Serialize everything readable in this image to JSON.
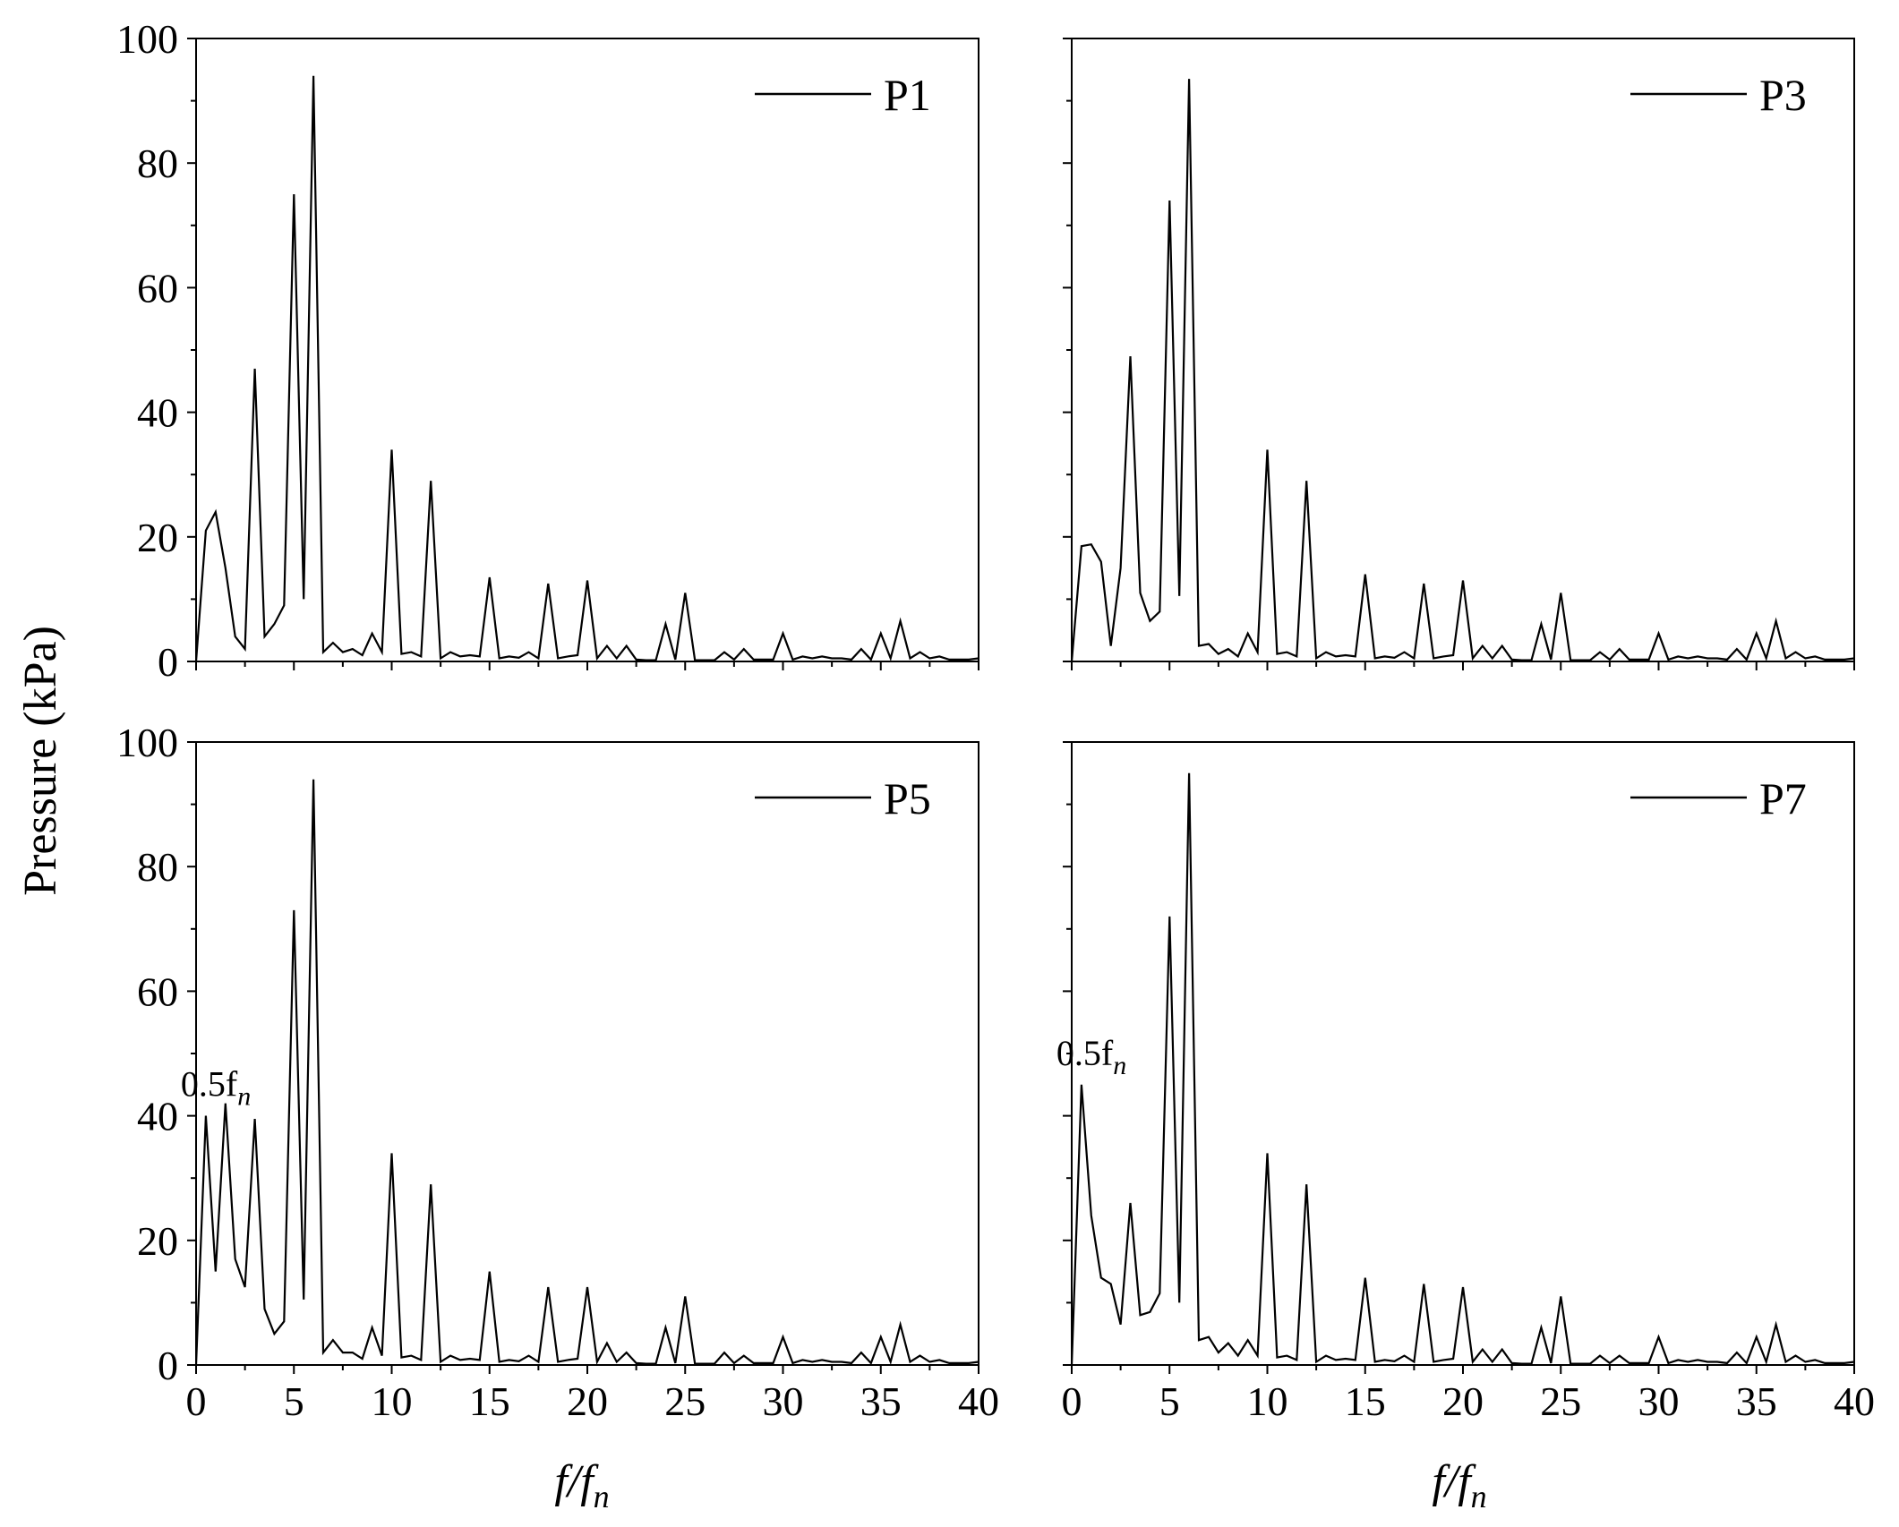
{
  "figure": {
    "ylabel": "Pressure (kPa)",
    "xlabel_main": "f/f",
    "xlabel_sub": "n",
    "annotation_main": "0.5f",
    "annotation_sub": "n"
  },
  "colors": {
    "line": "#000000",
    "background": "#ffffff"
  },
  "chart_data": [
    {
      "type": "line",
      "legend": "P1",
      "legend_position": "top-right",
      "xlim": [
        0,
        40
      ],
      "ylim": [
        0,
        100
      ],
      "xticks": [
        0,
        5,
        10,
        15,
        20,
        25,
        30,
        35,
        40
      ],
      "yticks": [
        0,
        20,
        40,
        60,
        80,
        100
      ],
      "grid": false,
      "annotation": null,
      "series": [
        {
          "name": "P1",
          "x": [
            0,
            0.5,
            1,
            1.5,
            2,
            2.5,
            3,
            3.5,
            4,
            4.5,
            5,
            5.5,
            6,
            6.5,
            7,
            7.5,
            8,
            8.5,
            9,
            9.5,
            10,
            10.5,
            11,
            11.5,
            12,
            12.5,
            13,
            13.5,
            14,
            14.5,
            15,
            15.5,
            16,
            16.5,
            17,
            17.5,
            18,
            18.5,
            19,
            19.5,
            20,
            20.5,
            21,
            21.5,
            22,
            22.5,
            23,
            23.5,
            24,
            24.5,
            25,
            25.5,
            26,
            26.5,
            27,
            27.5,
            28,
            28.5,
            29,
            29.5,
            30,
            30.5,
            31,
            31.5,
            32,
            32.5,
            33,
            33.5,
            34,
            34.5,
            35,
            35.5,
            36,
            36.5,
            37,
            37.5,
            38,
            38.5,
            39,
            39.5,
            40
          ],
          "y": [
            0,
            21,
            24,
            15,
            4,
            2,
            47,
            4,
            6,
            9,
            75,
            10,
            94,
            1.5,
            3,
            1.5,
            2,
            1,
            4.5,
            1.5,
            34,
            1.2,
            1.5,
            0.8,
            29,
            0.5,
            1.5,
            0.8,
            1,
            0.8,
            13.5,
            0.5,
            0.8,
            0.6,
            1.5,
            0.5,
            12.5,
            0.5,
            0.8,
            1,
            13,
            0.5,
            2.5,
            0.5,
            2.5,
            0.3,
            0.2,
            0.2,
            6,
            0.3,
            11,
            0.2,
            0.2,
            0.2,
            1.5,
            0.3,
            2,
            0.3,
            0.3,
            0.3,
            4.5,
            0.3,
            0.8,
            0.5,
            0.8,
            0.5,
            0.5,
            0.3,
            2,
            0.3,
            4.5,
            0.5,
            6.5,
            0.5,
            1.5,
            0.5,
            0.8,
            0.3,
            0.3,
            0.3,
            0.5
          ]
        }
      ]
    },
    {
      "type": "line",
      "legend": "P3",
      "legend_position": "top-right",
      "xlim": [
        0,
        40
      ],
      "ylim": [
        0,
        100
      ],
      "xticks": [
        0,
        5,
        10,
        15,
        20,
        25,
        30,
        35,
        40
      ],
      "yticks": [
        0,
        20,
        40,
        60,
        80,
        100
      ],
      "grid": false,
      "annotation": null,
      "series": [
        {
          "name": "P3",
          "x": [
            0,
            0.5,
            1,
            1.5,
            2,
            2.5,
            3,
            3.5,
            4,
            4.5,
            5,
            5.5,
            6,
            6.5,
            7,
            7.5,
            8,
            8.5,
            9,
            9.5,
            10,
            10.5,
            11,
            11.5,
            12,
            12.5,
            13,
            13.5,
            14,
            14.5,
            15,
            15.5,
            16,
            16.5,
            17,
            17.5,
            18,
            18.5,
            19,
            19.5,
            20,
            20.5,
            21,
            21.5,
            22,
            22.5,
            23,
            23.5,
            24,
            24.5,
            25,
            25.5,
            26,
            26.5,
            27,
            27.5,
            28,
            28.5,
            29,
            29.5,
            30,
            30.5,
            31,
            31.5,
            32,
            32.5,
            33,
            33.5,
            34,
            34.5,
            35,
            35.5,
            36,
            36.5,
            37,
            37.5,
            38,
            38.5,
            39,
            39.5,
            40
          ],
          "y": [
            0,
            18.5,
            18.8,
            16,
            2.5,
            15,
            49,
            11,
            6.5,
            8,
            74,
            10.5,
            93.5,
            2.5,
            2.8,
            1.2,
            2,
            0.8,
            4.5,
            1.5,
            34,
            1.2,
            1.5,
            0.8,
            29,
            0.5,
            1.5,
            0.8,
            1,
            0.8,
            14,
            0.5,
            0.8,
            0.6,
            1.5,
            0.5,
            12.5,
            0.5,
            0.8,
            1,
            13,
            0.5,
            2.5,
            0.5,
            2.5,
            0.3,
            0.2,
            0.2,
            6,
            0.3,
            11,
            0.2,
            0.2,
            0.2,
            1.5,
            0.3,
            2,
            0.3,
            0.3,
            0.3,
            4.5,
            0.3,
            0.8,
            0.5,
            0.8,
            0.5,
            0.5,
            0.3,
            2,
            0.3,
            4.5,
            0.5,
            6.5,
            0.5,
            1.5,
            0.5,
            0.8,
            0.3,
            0.3,
            0.3,
            0.5
          ]
        }
      ]
    },
    {
      "type": "line",
      "legend": "P5",
      "legend_position": "top-right",
      "xlim": [
        0,
        40
      ],
      "ylim": [
        0,
        100
      ],
      "xticks": [
        0,
        5,
        10,
        15,
        20,
        25,
        30,
        35,
        40
      ],
      "yticks": [
        0,
        20,
        40,
        60,
        80,
        100
      ],
      "grid": false,
      "annotation": {
        "x": 0.5,
        "y": 40
      },
      "series": [
        {
          "name": "P5",
          "x": [
            0,
            0.5,
            1,
            1.5,
            2,
            2.5,
            3,
            3.5,
            4,
            4.5,
            5,
            5.5,
            6,
            6.5,
            7,
            7.5,
            8,
            8.5,
            9,
            9.5,
            10,
            10.5,
            11,
            11.5,
            12,
            12.5,
            13,
            13.5,
            14,
            14.5,
            15,
            15.5,
            16,
            16.5,
            17,
            17.5,
            18,
            18.5,
            19,
            19.5,
            20,
            20.5,
            21,
            21.5,
            22,
            22.5,
            23,
            23.5,
            24,
            24.5,
            25,
            25.5,
            26,
            26.5,
            27,
            27.5,
            28,
            28.5,
            29,
            29.5,
            30,
            30.5,
            31,
            31.5,
            32,
            32.5,
            33,
            33.5,
            34,
            34.5,
            35,
            35.5,
            36,
            36.5,
            37,
            37.5,
            38,
            38.5,
            39,
            39.5,
            40
          ],
          "y": [
            0,
            40,
            15,
            42,
            17,
            12.5,
            39.5,
            9,
            5,
            7,
            73,
            10.5,
            94,
            2,
            4,
            2,
            2,
            1,
            6,
            1.5,
            34,
            1.2,
            1.5,
            0.8,
            29,
            0.5,
            1.5,
            0.8,
            1,
            0.8,
            15,
            0.5,
            0.8,
            0.6,
            1.5,
            0.5,
            12.5,
            0.5,
            0.8,
            1,
            12.5,
            0.5,
            3.5,
            0.5,
            2,
            0.3,
            0.2,
            0.2,
            6,
            0.3,
            11,
            0.2,
            0.2,
            0.2,
            2,
            0.3,
            1.5,
            0.3,
            0.3,
            0.3,
            4.5,
            0.3,
            0.8,
            0.5,
            0.8,
            0.5,
            0.5,
            0.3,
            2,
            0.3,
            4.5,
            0.5,
            6.5,
            0.5,
            1.5,
            0.5,
            0.8,
            0.3,
            0.3,
            0.3,
            0.5
          ]
        }
      ]
    },
    {
      "type": "line",
      "legend": "P7",
      "legend_position": "top-right",
      "xlim": [
        0,
        40
      ],
      "ylim": [
        0,
        100
      ],
      "xticks": [
        0,
        5,
        10,
        15,
        20,
        25,
        30,
        35,
        40
      ],
      "yticks": [
        0,
        20,
        40,
        60,
        80,
        100
      ],
      "grid": false,
      "annotation": {
        "x": 0.5,
        "y": 45
      },
      "series": [
        {
          "name": "P7",
          "x": [
            0,
            0.5,
            1,
            1.5,
            2,
            2.5,
            3,
            3.5,
            4,
            4.5,
            5,
            5.5,
            6,
            6.5,
            7,
            7.5,
            8,
            8.5,
            9,
            9.5,
            10,
            10.5,
            11,
            11.5,
            12,
            12.5,
            13,
            13.5,
            14,
            14.5,
            15,
            15.5,
            16,
            16.5,
            17,
            17.5,
            18,
            18.5,
            19,
            19.5,
            20,
            20.5,
            21,
            21.5,
            22,
            22.5,
            23,
            23.5,
            24,
            24.5,
            25,
            25.5,
            26,
            26.5,
            27,
            27.5,
            28,
            28.5,
            29,
            29.5,
            30,
            30.5,
            31,
            31.5,
            32,
            32.5,
            33,
            33.5,
            34,
            34.5,
            35,
            35.5,
            36,
            36.5,
            37,
            37.5,
            38,
            38.5,
            39,
            39.5,
            40
          ],
          "y": [
            0,
            45,
            24,
            14,
            13,
            6.5,
            26,
            8,
            8.5,
            11.5,
            72,
            10,
            95,
            4,
            4.5,
            2,
            3.5,
            1.5,
            4,
            1.5,
            34,
            1.2,
            1.5,
            0.8,
            29,
            0.5,
            1.5,
            0.8,
            1,
            0.8,
            14,
            0.5,
            0.8,
            0.6,
            1.5,
            0.5,
            13,
            0.5,
            0.8,
            1,
            12.5,
            0.5,
            2.5,
            0.5,
            2.5,
            0.3,
            0.2,
            0.2,
            6,
            0.3,
            11,
            0.2,
            0.2,
            0.2,
            1.5,
            0.3,
            1.5,
            0.3,
            0.3,
            0.3,
            4.5,
            0.3,
            0.8,
            0.5,
            0.8,
            0.5,
            0.5,
            0.3,
            2,
            0.3,
            4.5,
            0.5,
            6.5,
            0.5,
            1.5,
            0.5,
            0.8,
            0.3,
            0.3,
            0.3,
            0.5
          ]
        }
      ]
    }
  ]
}
